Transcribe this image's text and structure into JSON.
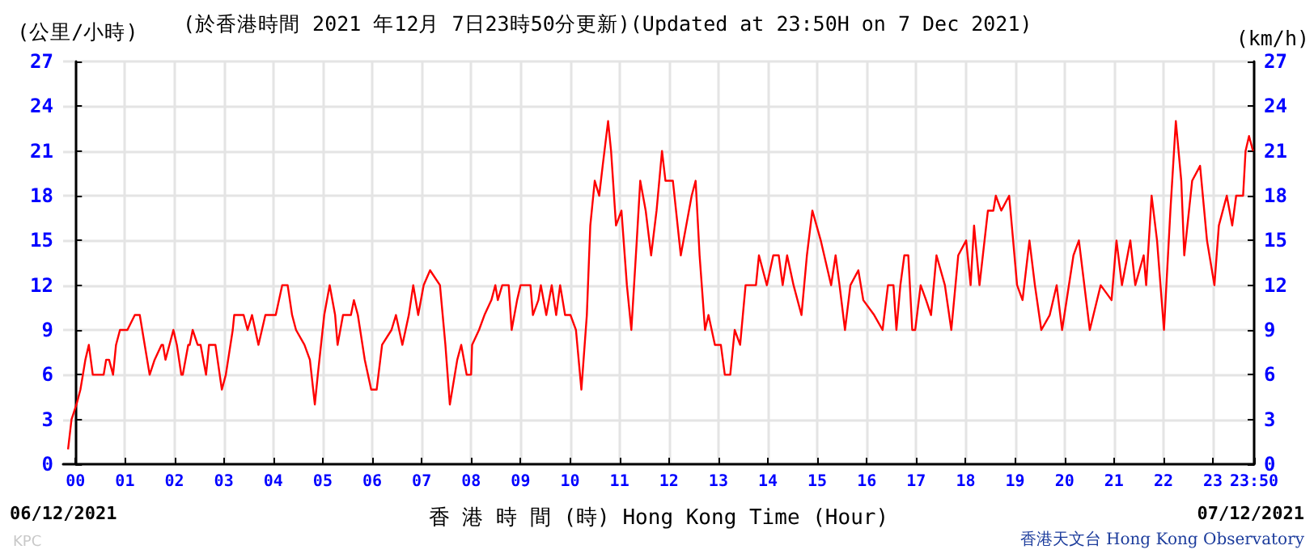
{
  "chart_data": {
    "type": "line",
    "title": "(於香港時間 2021 年12月 7日23時50分更新)(Updated at 23:50H on 7 Dec 2021)",
    "xlabel": "香 港 時 間 (時) Hong Kong Time (Hour)",
    "ylabel": "(公里/小時)",
    "y2label": "(km/h)",
    "annotations": [
      "06/12/2021",
      "07/12/2021",
      "KPC",
      "香港天文台 Hong Kong Observatory"
    ],
    "series": [
      {
        "color": "#ff0000",
        "x": [
          -0.15,
          -0.08,
          0.02,
          0.1,
          0.2,
          0.27,
          0.35,
          0.57,
          0.62,
          0.68,
          0.76,
          0.82,
          0.9,
          1.05,
          1.2,
          1.3,
          1.4,
          1.5,
          1.6,
          1.74,
          1.77,
          1.82,
          1.98,
          2.05,
          2.14,
          2.17,
          2.28,
          2.31,
          2.37,
          2.47,
          2.53,
          2.64,
          2.7,
          2.83,
          2.96,
          3.04,
          3.18,
          3.21,
          3.4,
          3.48,
          3.57,
          3.7,
          3.84,
          4.05,
          4.18,
          4.29,
          4.38,
          4.46,
          4.63,
          4.74,
          4.84,
          4.9,
          5.03,
          5.14,
          5.25,
          5.3,
          5.41,
          5.57,
          5.63,
          5.71,
          5.85,
          5.98,
          6.09,
          6.2,
          6.39,
          6.48,
          6.61,
          6.74,
          6.83,
          6.93,
          7.04,
          7.17,
          7.37,
          7.48,
          7.57,
          7.72,
          7.8,
          7.91,
          8.0,
          8.02,
          8.16,
          8.27,
          8.41,
          8.49,
          8.54,
          8.63,
          8.76,
          8.82,
          8.93,
          9.0,
          9.2,
          9.25,
          9.36,
          9.41,
          9.52,
          9.63,
          9.72,
          9.8,
          9.9,
          10.01,
          10.12,
          10.23,
          10.34,
          10.41,
          10.5,
          10.59,
          10.66,
          10.77,
          10.83,
          10.93,
          11.04,
          11.15,
          11.24,
          11.35,
          11.42,
          11.53,
          11.64,
          11.75,
          11.86,
          11.93,
          12.08,
          12.24,
          12.35,
          12.46,
          12.54,
          12.62,
          12.73,
          12.8,
          12.93,
          13.05,
          13.13,
          13.24,
          13.33,
          13.44,
          13.55,
          13.76,
          13.82,
          13.98,
          14.11,
          14.22,
          14.3,
          14.39,
          14.52,
          14.68,
          14.79,
          14.9,
          15.07,
          15.28,
          15.37,
          15.45,
          15.56,
          15.67,
          15.83,
          15.93,
          16.15,
          16.32,
          16.43,
          16.54,
          16.6,
          16.68,
          16.76,
          16.84,
          16.92,
          16.98,
          17.09,
          17.2,
          17.3,
          17.41,
          17.58,
          17.71,
          17.85,
          18.01,
          18.1,
          18.17,
          18.28,
          18.45,
          18.56,
          18.61,
          18.72,
          18.88,
          19.04,
          19.15,
          19.29,
          19.4,
          19.53,
          19.7,
          19.84,
          19.95,
          20.18,
          20.29,
          20.51,
          20.73,
          20.95,
          21.05,
          21.16,
          21.33,
          21.43,
          21.6,
          21.65,
          21.76,
          21.87,
          22.01,
          22.14,
          22.25,
          22.36,
          22.42,
          22.58,
          22.74,
          22.88,
          23.03,
          23.12,
          23.28,
          23.39,
          23.47,
          23.61,
          23.66,
          23.73,
          23.81
        ],
        "values": [
          1,
          3,
          4,
          5,
          7,
          8,
          6,
          6,
          7,
          7,
          6,
          8,
          9,
          9,
          10,
          10,
          8,
          6,
          7,
          8,
          8,
          7,
          9,
          8,
          6,
          6,
          8,
          8,
          9,
          8,
          8,
          6,
          8,
          8,
          5,
          6,
          9,
          10,
          10,
          9,
          10,
          8,
          10,
          10,
          12,
          12,
          10,
          9,
          8,
          7,
          4,
          6,
          10,
          12,
          10,
          8,
          10,
          10,
          11,
          10,
          7,
          5,
          5,
          8,
          9,
          10,
          8,
          10,
          12,
          10,
          12,
          13,
          12,
          8,
          4,
          7,
          8,
          6,
          6,
          8,
          9,
          10,
          11,
          12,
          11,
          12,
          12,
          9,
          11,
          12,
          12,
          10,
          11,
          12,
          10,
          12,
          10,
          12,
          10,
          10,
          9,
          5,
          10,
          16,
          19,
          18,
          20,
          23,
          21,
          16,
          17,
          12,
          9,
          15,
          19,
          17,
          14,
          17,
          21,
          19,
          19,
          14,
          16,
          18,
          19,
          14,
          9,
          10,
          8,
          8,
          6,
          6,
          9,
          8,
          12,
          12,
          14,
          12,
          14,
          14,
          12,
          14,
          12,
          10,
          14,
          17,
          15,
          12,
          14,
          12,
          9,
          12,
          13,
          11,
          10,
          9,
          12,
          12,
          9,
          12,
          14,
          14,
          9,
          9,
          12,
          11,
          10,
          14,
          12,
          9,
          14,
          15,
          12,
          16,
          12,
          17,
          17,
          18,
          17,
          18,
          12,
          11,
          15,
          12,
          9,
          10,
          12,
          9,
          14,
          15,
          9,
          12,
          11,
          15,
          12,
          15,
          12,
          14,
          12,
          18,
          15,
          9,
          17,
          23,
          19,
          14,
          19,
          20,
          15,
          12,
          16,
          18,
          16,
          18,
          18,
          21,
          22,
          21
        ]
      }
    ],
    "xlim": [
      -0.25,
      23.833
    ],
    "xticks": [
      {
        "value": 0,
        "label": "00"
      },
      {
        "value": 1,
        "label": "01"
      },
      {
        "value": 2,
        "label": "02"
      },
      {
        "value": 3,
        "label": "03"
      },
      {
        "value": 4,
        "label": "04"
      },
      {
        "value": 5,
        "label": "05"
      },
      {
        "value": 6,
        "label": "06"
      },
      {
        "value": 7,
        "label": "07"
      },
      {
        "value": 8,
        "label": "08"
      },
      {
        "value": 9,
        "label": "09"
      },
      {
        "value": 10,
        "label": "10"
      },
      {
        "value": 11,
        "label": "11"
      },
      {
        "value": 12,
        "label": "12"
      },
      {
        "value": 13,
        "label": "13"
      },
      {
        "value": 14,
        "label": "14"
      },
      {
        "value": 15,
        "label": "15"
      },
      {
        "value": 16,
        "label": "16"
      },
      {
        "value": 17,
        "label": "17"
      },
      {
        "value": 18,
        "label": "18"
      },
      {
        "value": 19,
        "label": "19"
      },
      {
        "value": 20,
        "label": "20"
      },
      {
        "value": 21,
        "label": "21"
      },
      {
        "value": 22,
        "label": "22"
      },
      {
        "value": 23,
        "label": "23"
      },
      {
        "value": 23.833,
        "label": "23:50"
      }
    ],
    "ylim": [
      0,
      27
    ],
    "yticks": [
      0,
      3,
      6,
      9,
      12,
      15,
      18,
      21,
      24,
      27
    ],
    "y2lim": [
      0,
      27
    ],
    "y2ticks": [
      0,
      3,
      6,
      9,
      12,
      15,
      18,
      21,
      24,
      27
    ],
    "grid": true,
    "marker": "none",
    "line_style": "solid"
  }
}
